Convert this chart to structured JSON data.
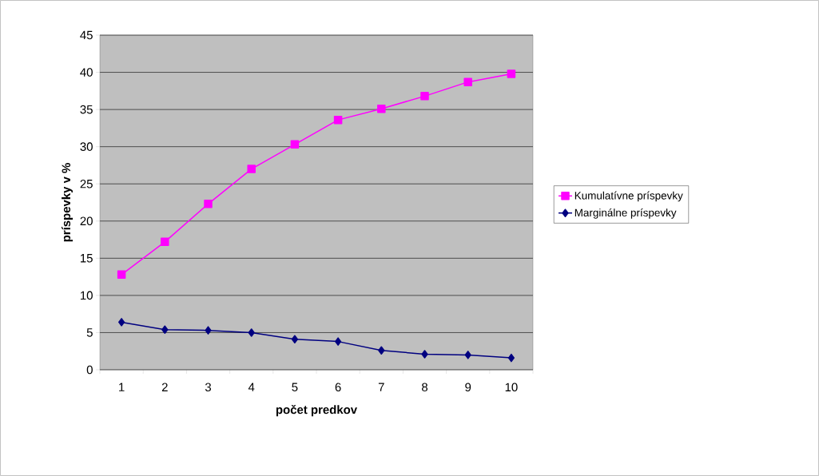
{
  "chart_data": {
    "type": "line",
    "xlabel": "počet predkov",
    "ylabel": "príspevky v %",
    "categories": [
      "1",
      "2",
      "3",
      "4",
      "5",
      "6",
      "7",
      "8",
      "9",
      "10"
    ],
    "series": [
      {
        "name": "Kumulatívne príspevky",
        "color": "#ff00ff",
        "marker": "square",
        "values": [
          12.8,
          17.2,
          22.3,
          27.0,
          30.3,
          33.6,
          35.1,
          36.8,
          38.7,
          39.8
        ]
      },
      {
        "name": "Marginálne príspevky",
        "color": "#000080",
        "marker": "diamond",
        "values": [
          6.4,
          5.4,
          5.3,
          5.0,
          4.1,
          3.8,
          2.6,
          2.1,
          2.0,
          1.6
        ]
      }
    ],
    "ylim": [
      0,
      45
    ],
    "yticks": [
      0,
      5,
      10,
      15,
      20,
      25,
      30,
      35,
      40,
      45
    ],
    "grid": "y",
    "legend": "right",
    "line_style": "solid"
  }
}
